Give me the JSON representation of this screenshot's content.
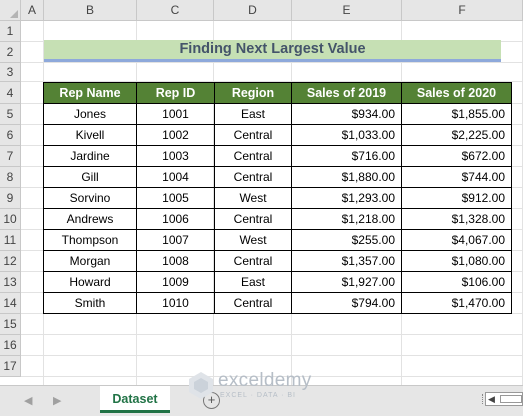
{
  "spreadsheet": {
    "column_headers": [
      "A",
      "B",
      "C",
      "D",
      "E",
      "F"
    ],
    "row_headers": [
      "1",
      "2",
      "3",
      "4",
      "5",
      "6",
      "7",
      "8",
      "9",
      "10",
      "11",
      "12",
      "13",
      "14",
      "15",
      "16",
      "17"
    ],
    "title": "Finding Next Largest Value",
    "table": {
      "headers": [
        "Rep Name",
        "Rep ID",
        "Region",
        "Sales of 2019",
        "Sales of 2020"
      ],
      "rows": [
        [
          "Jones",
          "1001",
          "East",
          "$934.00",
          "$1,855.00"
        ],
        [
          "Kivell",
          "1002",
          "Central",
          "$1,033.00",
          "$2,225.00"
        ],
        [
          "Jardine",
          "1003",
          "Central",
          "$716.00",
          "$672.00"
        ],
        [
          "Gill",
          "1004",
          "Central",
          "$1,880.00",
          "$744.00"
        ],
        [
          "Sorvino",
          "1005",
          "West",
          "$1,293.00",
          "$912.00"
        ],
        [
          "Andrews",
          "1006",
          "Central",
          "$1,218.00",
          "$1,328.00"
        ],
        [
          "Thompson",
          "1007",
          "West",
          "$255.00",
          "$4,067.00"
        ],
        [
          "Morgan",
          "1008",
          "Central",
          "$1,357.00",
          "$1,080.00"
        ],
        [
          "Howard",
          "1009",
          "East",
          "$1,927.00",
          "$106.00"
        ],
        [
          "Smith",
          "1010",
          "Central",
          "$794.00",
          "$1,470.00"
        ]
      ]
    }
  },
  "tabbar": {
    "sheet_tab_label": "Dataset",
    "add_sheet_symbol": "+",
    "prev_arrow": "◀",
    "next_arrow": "▶"
  },
  "watermark": {
    "brand": "exceldemy",
    "tagline": "EXCEL · DATA · BI"
  },
  "colors": {
    "header_green": "#548235",
    "title_fill": "#c6e0b4",
    "title_text": "#44546a",
    "tab_accent": "#217346"
  }
}
